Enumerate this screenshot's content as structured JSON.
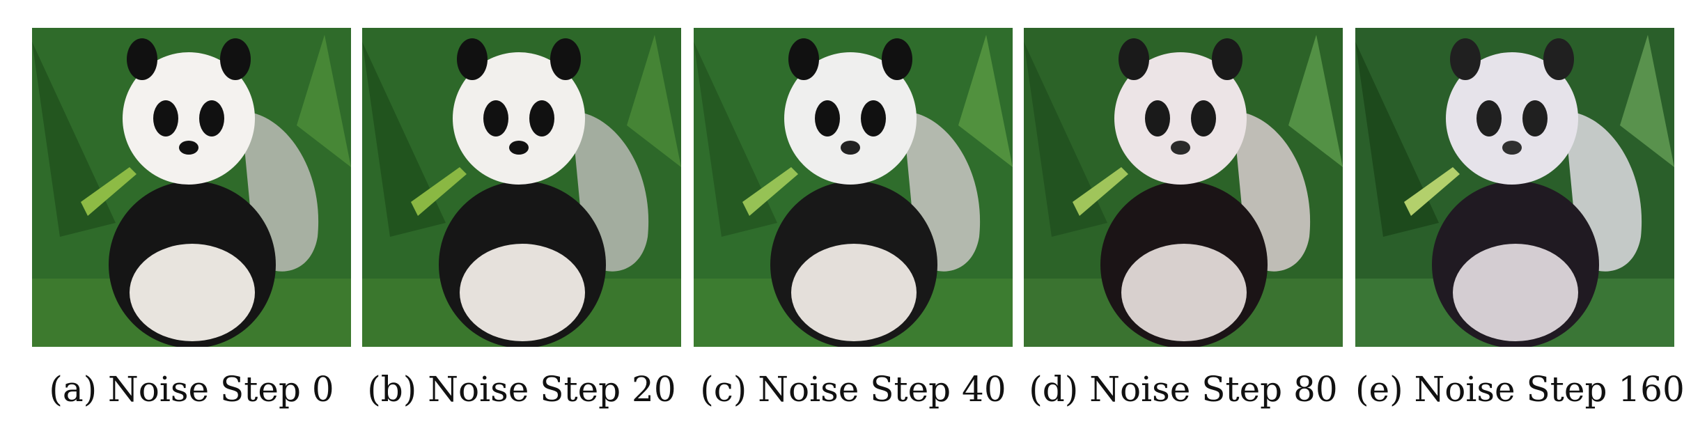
{
  "figure": {
    "panels": [
      {
        "label": "(a)",
        "caption": "Noise Step 0"
      },
      {
        "label": "(b)",
        "caption": "Noise Step 20"
      },
      {
        "label": "(c)",
        "caption": "Noise Step 40"
      },
      {
        "label": "(d)",
        "caption": "Noise Step 80"
      },
      {
        "label": "(e)",
        "caption": "Noise Step 160"
      }
    ]
  }
}
